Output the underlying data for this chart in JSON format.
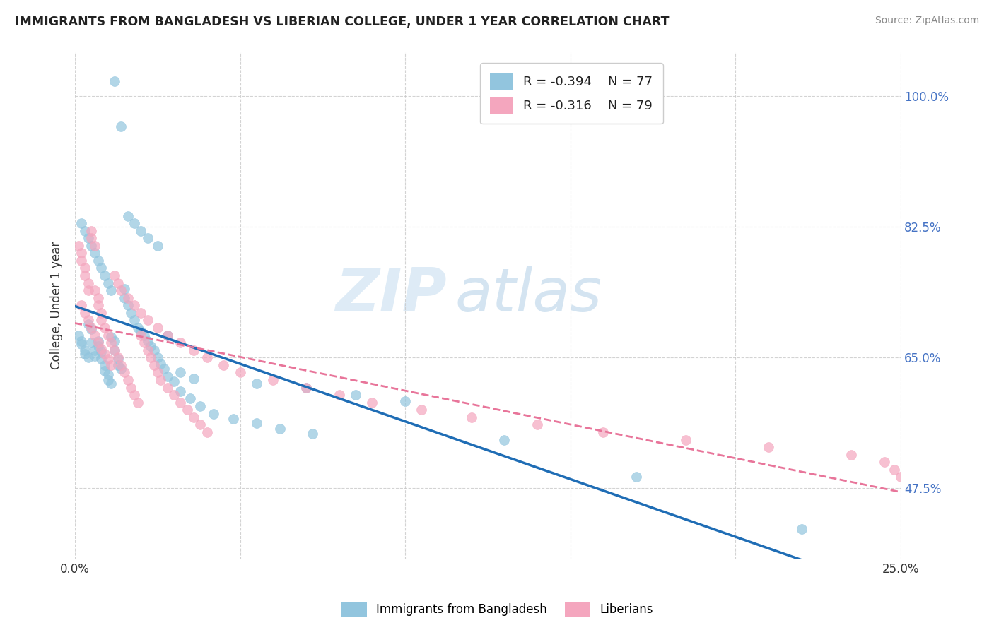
{
  "title": "IMMIGRANTS FROM BANGLADESH VS LIBERIAN COLLEGE, UNDER 1 YEAR CORRELATION CHART",
  "source": "Source: ZipAtlas.com",
  "ylabel": "College, Under 1 year",
  "yticks": [
    0.475,
    0.65,
    0.825,
    1.0
  ],
  "ytick_labels": [
    "47.5%",
    "65.0%",
    "82.5%",
    "100.0%"
  ],
  "xmin": 0.0,
  "xmax": 0.25,
  "ymin": 0.38,
  "ymax": 1.06,
  "legend_r_blue": "-0.394",
  "legend_n_blue": "77",
  "legend_r_pink": "-0.316",
  "legend_n_pink": "79",
  "blue_color": "#92c5de",
  "pink_color": "#f4a6be",
  "blue_line_color": "#1f6db5",
  "pink_line_color": "#e8759a",
  "watermark_zip": "ZIP",
  "watermark_atlas": "atlas",
  "blue_scatter_x": [
    0.001,
    0.002,
    0.002,
    0.003,
    0.003,
    0.004,
    0.004,
    0.005,
    0.005,
    0.006,
    0.006,
    0.007,
    0.007,
    0.008,
    0.008,
    0.009,
    0.009,
    0.01,
    0.01,
    0.011,
    0.011,
    0.012,
    0.012,
    0.013,
    0.013,
    0.014,
    0.015,
    0.015,
    0.016,
    0.017,
    0.018,
    0.019,
    0.02,
    0.021,
    0.022,
    0.023,
    0.024,
    0.025,
    0.026,
    0.027,
    0.028,
    0.03,
    0.032,
    0.035,
    0.038,
    0.042,
    0.048,
    0.055,
    0.062,
    0.072,
    0.002,
    0.003,
    0.004,
    0.005,
    0.006,
    0.007,
    0.008,
    0.009,
    0.01,
    0.011,
    0.012,
    0.014,
    0.016,
    0.018,
    0.02,
    0.022,
    0.025,
    0.028,
    0.032,
    0.036,
    0.055,
    0.07,
    0.085,
    0.1,
    0.13,
    0.17,
    0.22
  ],
  "blue_scatter_y": [
    0.68,
    0.672,
    0.668,
    0.66,
    0.655,
    0.65,
    0.695,
    0.688,
    0.67,
    0.66,
    0.652,
    0.672,
    0.665,
    0.658,
    0.648,
    0.64,
    0.632,
    0.628,
    0.62,
    0.615,
    0.678,
    0.672,
    0.66,
    0.648,
    0.64,
    0.635,
    0.742,
    0.73,
    0.72,
    0.71,
    0.7,
    0.69,
    0.685,
    0.68,
    0.672,
    0.665,
    0.66,
    0.65,
    0.642,
    0.635,
    0.625,
    0.618,
    0.605,
    0.595,
    0.585,
    0.575,
    0.568,
    0.562,
    0.555,
    0.548,
    0.83,
    0.82,
    0.81,
    0.8,
    0.79,
    0.78,
    0.77,
    0.76,
    0.75,
    0.74,
    1.02,
    0.96,
    0.84,
    0.83,
    0.82,
    0.81,
    0.8,
    0.68,
    0.63,
    0.622,
    0.615,
    0.61,
    0.6,
    0.592,
    0.54,
    0.49,
    0.42
  ],
  "pink_scatter_x": [
    0.001,
    0.002,
    0.002,
    0.003,
    0.003,
    0.004,
    0.004,
    0.005,
    0.005,
    0.006,
    0.006,
    0.007,
    0.007,
    0.008,
    0.008,
    0.009,
    0.01,
    0.011,
    0.012,
    0.013,
    0.014,
    0.015,
    0.016,
    0.017,
    0.018,
    0.019,
    0.02,
    0.021,
    0.022,
    0.023,
    0.024,
    0.025,
    0.026,
    0.028,
    0.03,
    0.032,
    0.034,
    0.036,
    0.038,
    0.04,
    0.002,
    0.003,
    0.004,
    0.005,
    0.006,
    0.007,
    0.008,
    0.009,
    0.01,
    0.011,
    0.012,
    0.013,
    0.014,
    0.016,
    0.018,
    0.02,
    0.022,
    0.025,
    0.028,
    0.032,
    0.036,
    0.04,
    0.045,
    0.05,
    0.06,
    0.07,
    0.08,
    0.09,
    0.105,
    0.12,
    0.14,
    0.16,
    0.185,
    0.21,
    0.235,
    0.245,
    0.248,
    0.25,
    0.252
  ],
  "pink_scatter_y": [
    0.8,
    0.79,
    0.78,
    0.77,
    0.76,
    0.75,
    0.74,
    0.82,
    0.81,
    0.8,
    0.74,
    0.73,
    0.72,
    0.71,
    0.7,
    0.69,
    0.68,
    0.67,
    0.66,
    0.65,
    0.64,
    0.63,
    0.62,
    0.61,
    0.6,
    0.59,
    0.68,
    0.67,
    0.66,
    0.65,
    0.64,
    0.63,
    0.62,
    0.61,
    0.6,
    0.59,
    0.58,
    0.57,
    0.56,
    0.55,
    0.72,
    0.71,
    0.7,
    0.69,
    0.68,
    0.67,
    0.662,
    0.655,
    0.648,
    0.64,
    0.76,
    0.75,
    0.74,
    0.73,
    0.72,
    0.71,
    0.7,
    0.69,
    0.68,
    0.67,
    0.66,
    0.65,
    0.64,
    0.63,
    0.62,
    0.61,
    0.6,
    0.59,
    0.58,
    0.57,
    0.56,
    0.55,
    0.54,
    0.53,
    0.52,
    0.51,
    0.5,
    0.49,
    0.48
  ]
}
